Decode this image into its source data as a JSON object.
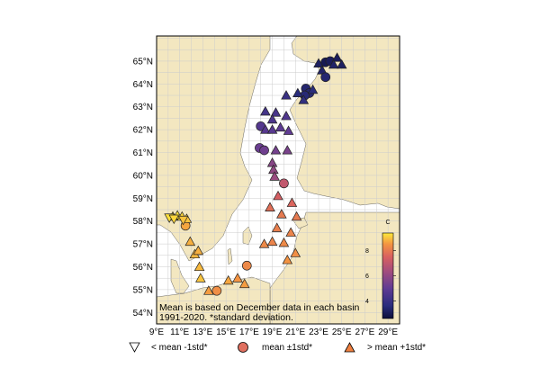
{
  "map": {
    "lon_ticks": [
      "9°E",
      "11°E",
      "13°E",
      "15°E",
      "17°E",
      "19°E",
      "21°E",
      "23°E",
      "25°E",
      "27°E",
      "29°E"
    ],
    "lat_ticks": [
      "54°N",
      "55°N",
      "56°N",
      "57°N",
      "58°N",
      "59°N",
      "60°N",
      "61°N",
      "62°N",
      "63°N",
      "64°N",
      "65°N"
    ],
    "lon_range": [
      9,
      30
    ],
    "lat_range": [
      53.5,
      66.1
    ],
    "land_color": "#f3e7c0",
    "sea_color": "#ffffff",
    "note_line1": "Mean is based on December data in each basin",
    "note_line2": "1991-2020. *standard deviation."
  },
  "colorbar": {
    "unit": "C",
    "tick_labels": [
      "4",
      "6",
      "8"
    ],
    "tick_values": [
      4,
      6,
      8
    ],
    "range": [
      2.6,
      9.4
    ],
    "colormap": "plasma-like"
  },
  "legend": {
    "below_label": "< mean -1std*",
    "mean_label": "mean ±1std*",
    "above_label": "> mean +1std*"
  },
  "chart_data": {
    "type": "scatter",
    "marker_classes": [
      "below",
      "mean",
      "above"
    ],
    "points": [
      {
        "lon": 23.6,
        "lat": 64.95,
        "value": 3.0,
        "class": "mean"
      },
      {
        "lon": 24.0,
        "lat": 65.0,
        "value": 3.1,
        "class": "mean"
      },
      {
        "lon": 24.6,
        "lat": 65.15,
        "value": 3.1,
        "class": "above"
      },
      {
        "lon": 25.0,
        "lat": 64.85,
        "value": 3.2,
        "class": "above"
      },
      {
        "lon": 24.3,
        "lat": 64.85,
        "value": 3.3,
        "class": "above"
      },
      {
        "lon": 23.0,
        "lat": 64.9,
        "value": 3.2,
        "class": "above"
      },
      {
        "lon": 23.3,
        "lat": 64.6,
        "value": 3.3,
        "class": "above"
      },
      {
        "lon": 23.6,
        "lat": 64.3,
        "value": 3.4,
        "class": "mean"
      },
      {
        "lon": 21.9,
        "lat": 63.8,
        "value": 3.4,
        "class": "mean"
      },
      {
        "lon": 22.2,
        "lat": 63.6,
        "value": 3.5,
        "class": "mean"
      },
      {
        "lon": 21.8,
        "lat": 63.5,
        "value": 3.5,
        "class": "mean"
      },
      {
        "lon": 22.5,
        "lat": 63.75,
        "value": 3.6,
        "class": "above"
      },
      {
        "lon": 21.2,
        "lat": 63.6,
        "value": 3.6,
        "class": "above"
      },
      {
        "lon": 21.7,
        "lat": 63.3,
        "value": 3.8,
        "class": "above"
      },
      {
        "lon": 20.2,
        "lat": 63.5,
        "value": 4.0,
        "class": "above"
      },
      {
        "lon": 18.4,
        "lat": 62.8,
        "value": 4.3,
        "class": "above"
      },
      {
        "lon": 19.3,
        "lat": 62.75,
        "value": 4.4,
        "class": "above"
      },
      {
        "lon": 20.2,
        "lat": 62.6,
        "value": 4.6,
        "class": "above"
      },
      {
        "lon": 19.0,
        "lat": 62.45,
        "value": 4.5,
        "class": "above"
      },
      {
        "lon": 18.0,
        "lat": 62.15,
        "value": 4.7,
        "class": "mean"
      },
      {
        "lon": 18.4,
        "lat": 62.0,
        "value": 4.8,
        "class": "above"
      },
      {
        "lon": 19.0,
        "lat": 62.0,
        "value": 4.8,
        "class": "above"
      },
      {
        "lon": 19.7,
        "lat": 62.1,
        "value": 4.9,
        "class": "above"
      },
      {
        "lon": 20.4,
        "lat": 61.95,
        "value": 5.0,
        "class": "above"
      },
      {
        "lon": 17.9,
        "lat": 61.2,
        "value": 5.2,
        "class": "mean"
      },
      {
        "lon": 18.3,
        "lat": 61.1,
        "value": 5.3,
        "class": "mean"
      },
      {
        "lon": 19.3,
        "lat": 61.1,
        "value": 5.4,
        "class": "above"
      },
      {
        "lon": 20.3,
        "lat": 61.1,
        "value": 5.5,
        "class": "above"
      },
      {
        "lon": 19.0,
        "lat": 60.55,
        "value": 5.8,
        "class": "above"
      },
      {
        "lon": 19.1,
        "lat": 60.25,
        "value": 6.0,
        "class": "above"
      },
      {
        "lon": 19.2,
        "lat": 59.95,
        "value": 6.2,
        "class": "above"
      },
      {
        "lon": 20.0,
        "lat": 59.65,
        "value": 7.0,
        "class": "mean"
      },
      {
        "lon": 19.5,
        "lat": 59.1,
        "value": 7.4,
        "class": "above"
      },
      {
        "lon": 20.7,
        "lat": 58.8,
        "value": 7.6,
        "class": "above"
      },
      {
        "lon": 18.8,
        "lat": 58.6,
        "value": 7.8,
        "class": "above"
      },
      {
        "lon": 19.8,
        "lat": 58.3,
        "value": 8.0,
        "class": "above"
      },
      {
        "lon": 21.1,
        "lat": 58.2,
        "value": 8.0,
        "class": "above"
      },
      {
        "lon": 19.4,
        "lat": 57.7,
        "value": 8.1,
        "class": "above"
      },
      {
        "lon": 20.6,
        "lat": 57.5,
        "value": 8.2,
        "class": "above"
      },
      {
        "lon": 19.0,
        "lat": 57.1,
        "value": 8.2,
        "class": "above"
      },
      {
        "lon": 20.0,
        "lat": 57.05,
        "value": 8.3,
        "class": "above"
      },
      {
        "lon": 18.3,
        "lat": 57.0,
        "value": 8.3,
        "class": "above"
      },
      {
        "lon": 21.0,
        "lat": 56.6,
        "value": 8.4,
        "class": "above"
      },
      {
        "lon": 20.3,
        "lat": 56.3,
        "value": 8.5,
        "class": "above"
      },
      {
        "lon": 16.8,
        "lat": 56.05,
        "value": 8.3,
        "class": "mean"
      },
      {
        "lon": 16.0,
        "lat": 55.5,
        "value": 8.5,
        "class": "above"
      },
      {
        "lon": 16.6,
        "lat": 55.25,
        "value": 8.6,
        "class": "above"
      },
      {
        "lon": 15.2,
        "lat": 55.4,
        "value": 8.7,
        "class": "above"
      },
      {
        "lon": 14.2,
        "lat": 54.95,
        "value": 8.4,
        "class": "mean"
      },
      {
        "lon": 13.5,
        "lat": 54.95,
        "value": 8.6,
        "class": "above"
      },
      {
        "lon": 11.9,
        "lat": 57.1,
        "value": 8.8,
        "class": "above"
      },
      {
        "lon": 12.3,
        "lat": 56.55,
        "value": 8.9,
        "class": "above"
      },
      {
        "lon": 12.6,
        "lat": 56.7,
        "value": 8.8,
        "class": "above"
      },
      {
        "lon": 12.7,
        "lat": 56.0,
        "value": 8.9,
        "class": "above"
      },
      {
        "lon": 12.8,
        "lat": 55.5,
        "value": 9.0,
        "class": "above"
      },
      {
        "lon": 11.5,
        "lat": 57.8,
        "value": 8.7,
        "class": "mean"
      },
      {
        "lon": 10.4,
        "lat": 58.2,
        "value": 9.2,
        "class": "above"
      },
      {
        "lon": 10.8,
        "lat": 58.25,
        "value": 9.3,
        "class": "above"
      },
      {
        "lon": 11.2,
        "lat": 58.2,
        "value": 9.2,
        "class": "above"
      },
      {
        "lon": 11.6,
        "lat": 58.1,
        "value": 9.0,
        "class": "above"
      },
      {
        "lon": 10.1,
        "lat": 58.15,
        "value": 9.3,
        "class": "below"
      },
      {
        "lon": 10.5,
        "lat": 58.1,
        "value": 9.2,
        "class": "below"
      },
      {
        "lon": 11.3,
        "lat": 58.05,
        "value": 9.0,
        "class": "below"
      }
    ]
  }
}
